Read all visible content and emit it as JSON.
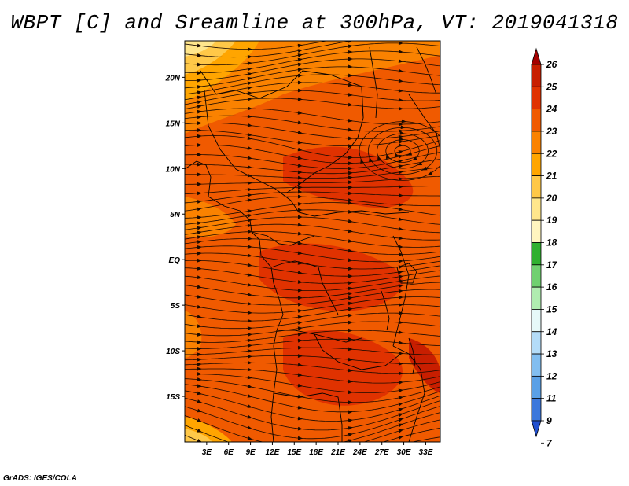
{
  "title": "WBPT [C] and Sreamline at 300hPa, VT: 2019041318",
  "footer": "GrADS: IGES/COLA",
  "map": {
    "lon_range": [
      0,
      35
    ],
    "lat_range": [
      -20,
      24
    ],
    "lon_ticks": [
      "3E",
      "6E",
      "9E",
      "12E",
      "15E",
      "18E",
      "21E",
      "24E",
      "27E",
      "30E",
      "33E"
    ],
    "lon_tick_values": [
      3,
      6,
      9,
      12,
      15,
      18,
      21,
      24,
      27,
      30,
      33
    ],
    "lat_ticks": [
      "20N",
      "15N",
      "10N",
      "5N",
      "EQ",
      "5S",
      "10S",
      "15S"
    ],
    "lat_tick_values": [
      20,
      15,
      10,
      5,
      0,
      -5,
      -10,
      -15
    ]
  },
  "colorbar": {
    "labels": [
      "26",
      "25",
      "24",
      "23",
      "22",
      "21",
      "20",
      "19",
      "18",
      "17",
      "16",
      "15",
      "14",
      "13",
      "12",
      "11",
      "9",
      "7"
    ],
    "colors": [
      "#a50000",
      "#c81e00",
      "#e03200",
      "#f05a00",
      "#fa8200",
      "#ffa500",
      "#ffc848",
      "#ffe68c",
      "#fff5c0",
      "#30b030",
      "#70d070",
      "#b0ecb0",
      "#e6f8f8",
      "#b4dcf8",
      "#82bef0",
      "#5aa0e6",
      "#3c78dc",
      "#2050d0"
    ]
  },
  "colors": {
    "base_field": "#f05a00",
    "warm_field": "#e03200",
    "cool_field": "#fa8200",
    "pale_field": "#ffc848"
  }
}
